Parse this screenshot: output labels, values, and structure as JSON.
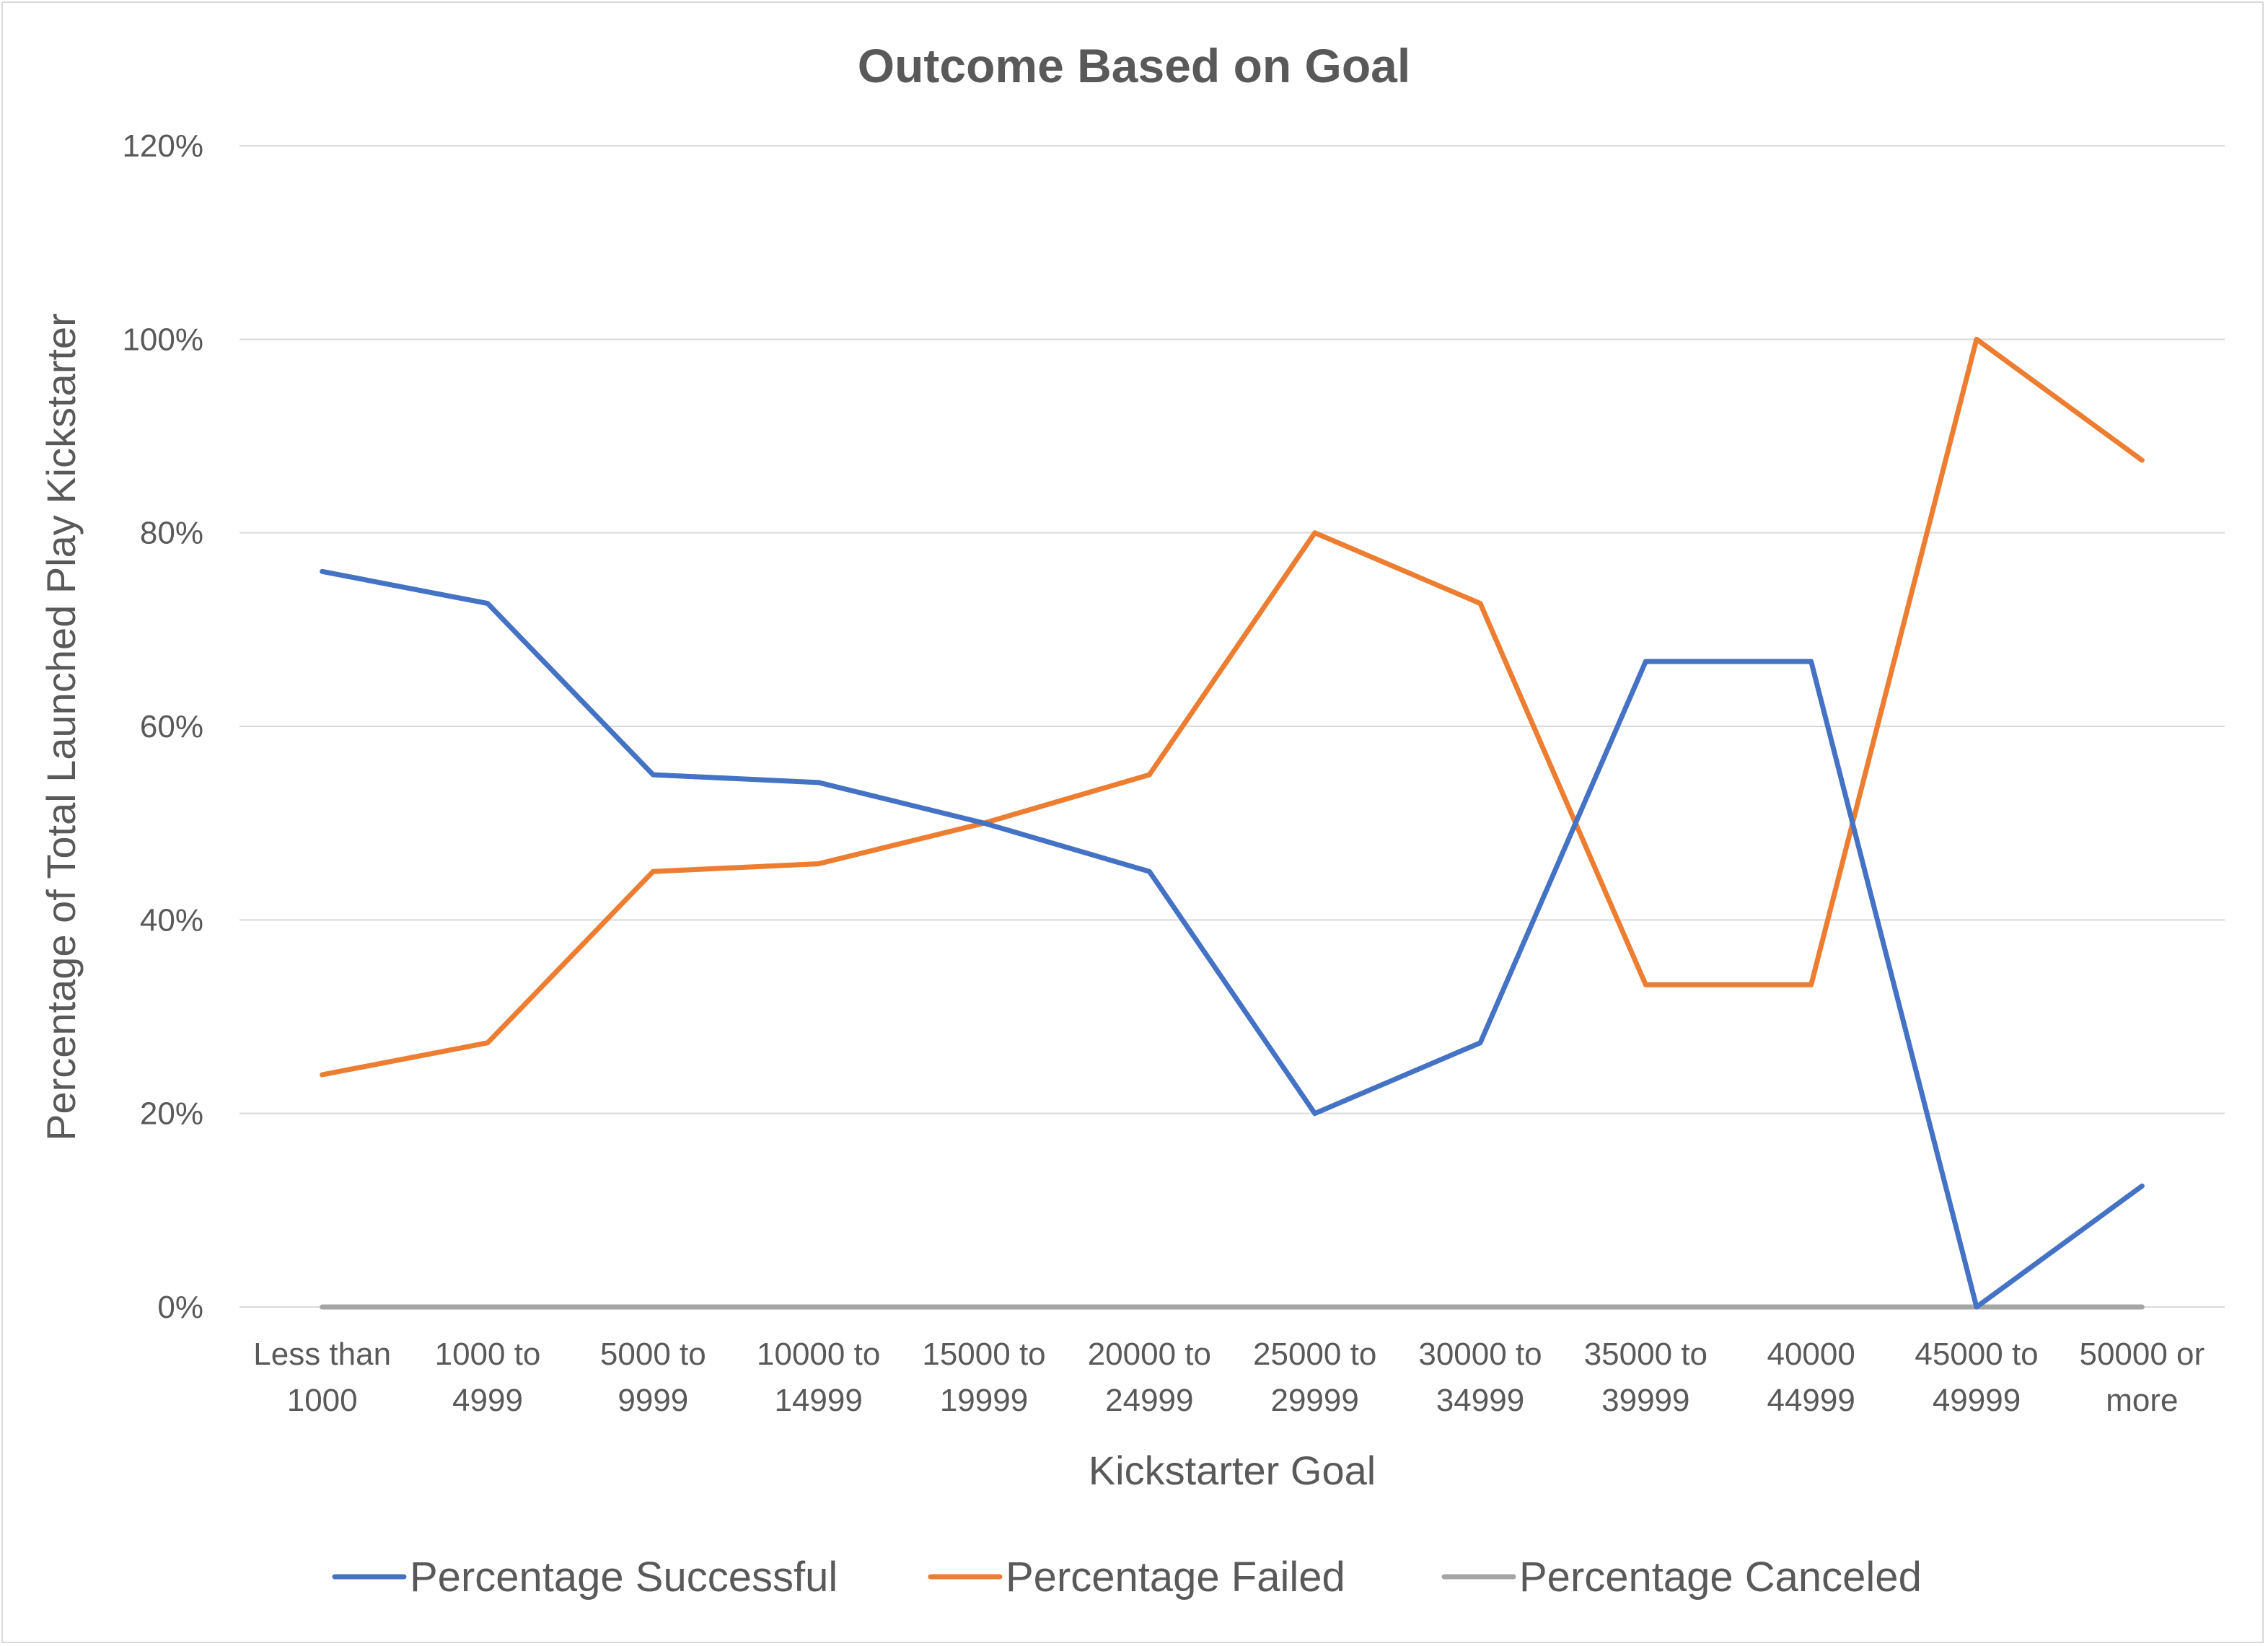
{
  "chart_data": {
    "type": "line",
    "title": "Outcome Based on Goal",
    "xlabel": "Kickstarter Goal",
    "ylabel": "Percentage of Total Launched Play Kickstarter",
    "categories": [
      [
        "Less than",
        "1000"
      ],
      [
        "1000 to",
        "4999"
      ],
      [
        "5000 to",
        "9999"
      ],
      [
        "10000 to",
        "14999"
      ],
      [
        "15000 to",
        "19999"
      ],
      [
        "20000 to",
        "24999"
      ],
      [
        "25000 to",
        "29999"
      ],
      [
        "30000 to",
        "34999"
      ],
      [
        "35000 to",
        "39999"
      ],
      [
        "40000",
        "44999"
      ],
      [
        "45000 to",
        "49999"
      ],
      [
        "50000 or",
        "more"
      ]
    ],
    "y_ticks": [
      "0%",
      "20%",
      "40%",
      "60%",
      "80%",
      "100%",
      "120%"
    ],
    "ylim": [
      0,
      1.2
    ],
    "grid": true,
    "legend_position": "bottom",
    "series": [
      {
        "name": "Percentage Successful",
        "color": "#4472c4",
        "values": [
          0.76,
          0.727,
          0.55,
          0.542,
          0.5,
          0.45,
          0.2,
          0.273,
          0.667,
          0.667,
          0.0,
          0.125
        ]
      },
      {
        "name": "Percentage Failed",
        "color": "#ed7d31",
        "values": [
          0.24,
          0.273,
          0.45,
          0.458,
          0.5,
          0.55,
          0.8,
          0.727,
          0.333,
          0.333,
          1.0,
          0.875
        ]
      },
      {
        "name": "Percentage Canceled",
        "color": "#a5a5a5",
        "values": [
          0,
          0,
          0,
          0,
          0,
          0,
          0,
          0,
          0,
          0,
          0,
          0
        ]
      }
    ]
  }
}
